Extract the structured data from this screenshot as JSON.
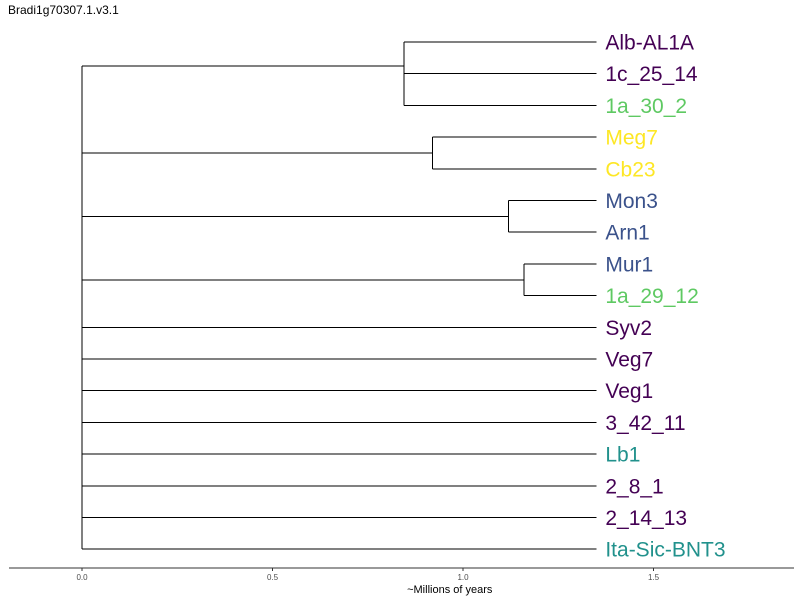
{
  "title": "Bradi1g70307.1.v3.1",
  "chart_data": {
    "type": "phylogenetic-tree",
    "xlabel": "~Millions of years",
    "xlim": [
      0,
      2.0
    ],
    "xticks": [
      0.0,
      0.5,
      1.0,
      1.5
    ],
    "xtick_labels": [
      "0.0",
      "0.5",
      "1.0",
      "1.5"
    ],
    "tip_depth": 1.35,
    "colors": {
      "dark_purple": "#440154",
      "slate_blue": "#3b528b",
      "teal": "#21918c",
      "green": "#5ec962",
      "yellow": "#fde725"
    },
    "tips": [
      {
        "label": "Alb-AL1A",
        "color": "#440154"
      },
      {
        "label": "1c_25_14",
        "color": "#440154"
      },
      {
        "label": "1a_30_2",
        "color": "#5ec962"
      },
      {
        "label": "Meg7",
        "color": "#fde725"
      },
      {
        "label": "Cb23",
        "color": "#fde725"
      },
      {
        "label": "Mon3",
        "color": "#3b528b"
      },
      {
        "label": "Arn1",
        "color": "#3b528b"
      },
      {
        "label": "Mur1",
        "color": "#3b528b"
      },
      {
        "label": "1a_29_12",
        "color": "#5ec962"
      },
      {
        "label": "Syv2",
        "color": "#440154"
      },
      {
        "label": "Veg7",
        "color": "#440154"
      },
      {
        "label": "Veg1",
        "color": "#440154"
      },
      {
        "label": "3_42_11",
        "color": "#440154"
      },
      {
        "label": "Lb1",
        "color": "#21918c"
      },
      {
        "label": "2_8_1",
        "color": "#440154"
      },
      {
        "label": "2_14_13",
        "color": "#440154"
      },
      {
        "label": "Ita-Sic-BNT3",
        "color": "#21918c"
      }
    ],
    "root": {
      "age": 0.0,
      "children": [
        {
          "age": 0.845,
          "children": [
            {
              "tip": 0
            },
            {
              "age": 0.845,
              "children": [
                {
                  "tip": 1
                },
                {
                  "tip": 2
                }
              ]
            }
          ]
        },
        {
          "age": 0.92,
          "children": [
            {
              "tip": 3
            },
            {
              "tip": 4
            }
          ]
        },
        {
          "age": 1.12,
          "children": [
            {
              "tip": 5
            },
            {
              "tip": 6
            }
          ]
        },
        {
          "age": 1.16,
          "children": [
            {
              "tip": 7
            },
            {
              "tip": 8
            }
          ]
        },
        {
          "tip": 9
        },
        {
          "tip": 10
        },
        {
          "tip": 11
        },
        {
          "tip": 12
        },
        {
          "tip": 13
        },
        {
          "tip": 14
        },
        {
          "tip": 15
        },
        {
          "tip": 16
        }
      ]
    }
  }
}
